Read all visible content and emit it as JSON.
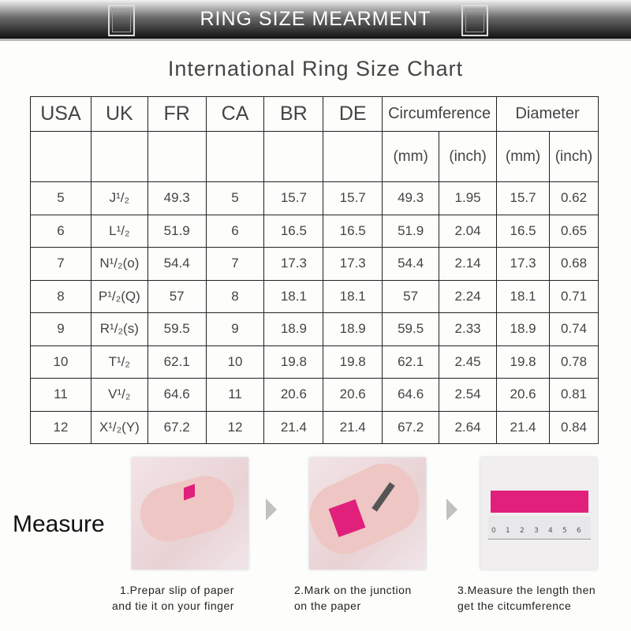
{
  "banner": {
    "title": "RING SIZE MEARMENT"
  },
  "subtitle": "International Ring Size Chart",
  "table": {
    "headers": [
      "USA",
      "UK",
      "FR",
      "CA",
      "BR",
      "DE",
      "Circumference",
      "Diameter"
    ],
    "subheaders": [
      "(mm)",
      "(inch)",
      "(mm)",
      "(inch)"
    ],
    "rows": [
      [
        "5",
        "J¹/₂",
        "49.3",
        "5",
        "15.7",
        "15.7",
        "49.3",
        "1.95",
        "15.7",
        "0.62"
      ],
      [
        "6",
        "L¹/₂",
        "51.9",
        "6",
        "16.5",
        "16.5",
        "51.9",
        "2.04",
        "16.5",
        "0.65"
      ],
      [
        "7",
        "N¹/₂(o)",
        "54.4",
        "7",
        "17.3",
        "17.3",
        "54.4",
        "2.14",
        "17.3",
        "0.68"
      ],
      [
        "8",
        "P¹/₂(Q)",
        "57",
        "8",
        "18.1",
        "18.1",
        "57",
        "2.24",
        "18.1",
        "0.71"
      ],
      [
        "9",
        "R¹/₂(s)",
        "59.5",
        "9",
        "18.9",
        "18.9",
        "59.5",
        "2.33",
        "18.9",
        "0.74"
      ],
      [
        "10",
        "T¹/₂",
        "62.1",
        "10",
        "19.8",
        "19.8",
        "62.1",
        "2.45",
        "19.8",
        "0.78"
      ],
      [
        "11",
        "V¹/₂",
        "64.6",
        "11",
        "20.6",
        "20.6",
        "64.6",
        "2.54",
        "20.6",
        "0.81"
      ],
      [
        "12",
        "X¹/₂(Y)",
        "67.2",
        "12",
        "21.4",
        "21.4",
        "67.2",
        "2.64",
        "21.4",
        "0.84"
      ]
    ]
  },
  "measure": {
    "label": "Measure",
    "steps": [
      {
        "line1": "1.Prepar slip of paper",
        "line2": "and tie it on your finger"
      },
      {
        "line1": "2.Mark on the junction",
        "line2": "on the paper"
      },
      {
        "line1": "3.Measure the length then",
        "line2": "get the citcumference"
      }
    ],
    "ruler_numbers": [
      "0",
      "1",
      "2",
      "3",
      "4",
      "5",
      "6"
    ],
    "accent": "#e0207a"
  }
}
